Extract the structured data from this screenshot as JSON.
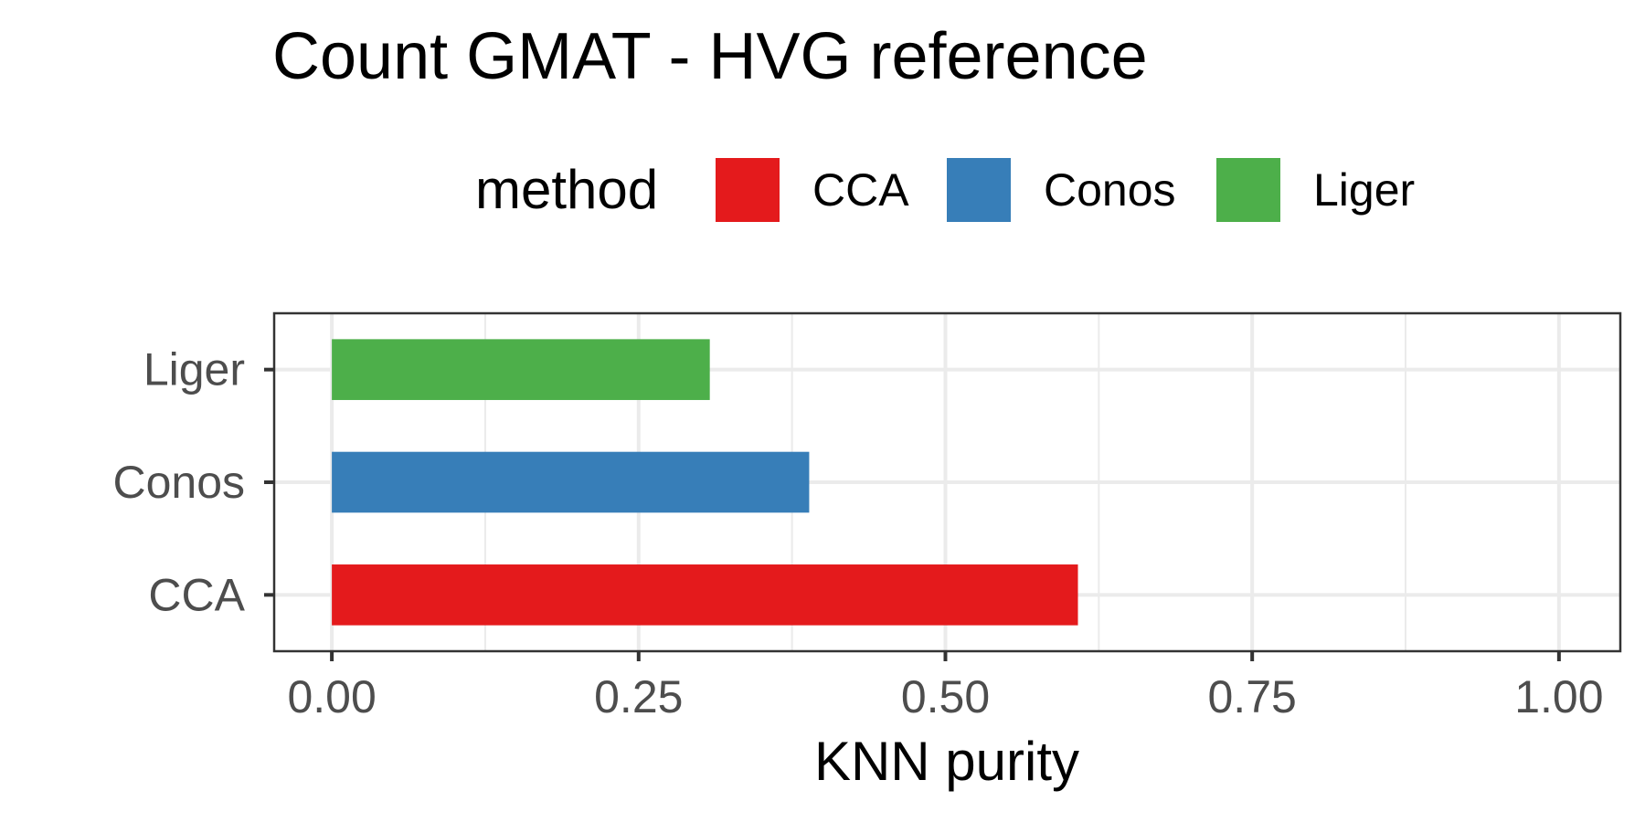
{
  "chart_data": {
    "type": "bar",
    "orientation": "horizontal",
    "title": "Count GMAT - HVG reference",
    "xlabel": "KNN purity",
    "ylabel": "",
    "xlim": [
      -0.047,
      1.05
    ],
    "xticks": [
      "0.00",
      "0.25",
      "0.50",
      "0.75",
      "1.00"
    ],
    "categories": [
      "CCA",
      "Conos",
      "Liger"
    ],
    "values": [
      0.608,
      0.389,
      0.308
    ],
    "colors": [
      "#E41A1C",
      "#377EB8",
      "#4DAF4A"
    ],
    "legend": {
      "title": "method",
      "position": "top",
      "entries": [
        "CCA",
        "Conos",
        "Liger"
      ]
    },
    "grid": true
  }
}
